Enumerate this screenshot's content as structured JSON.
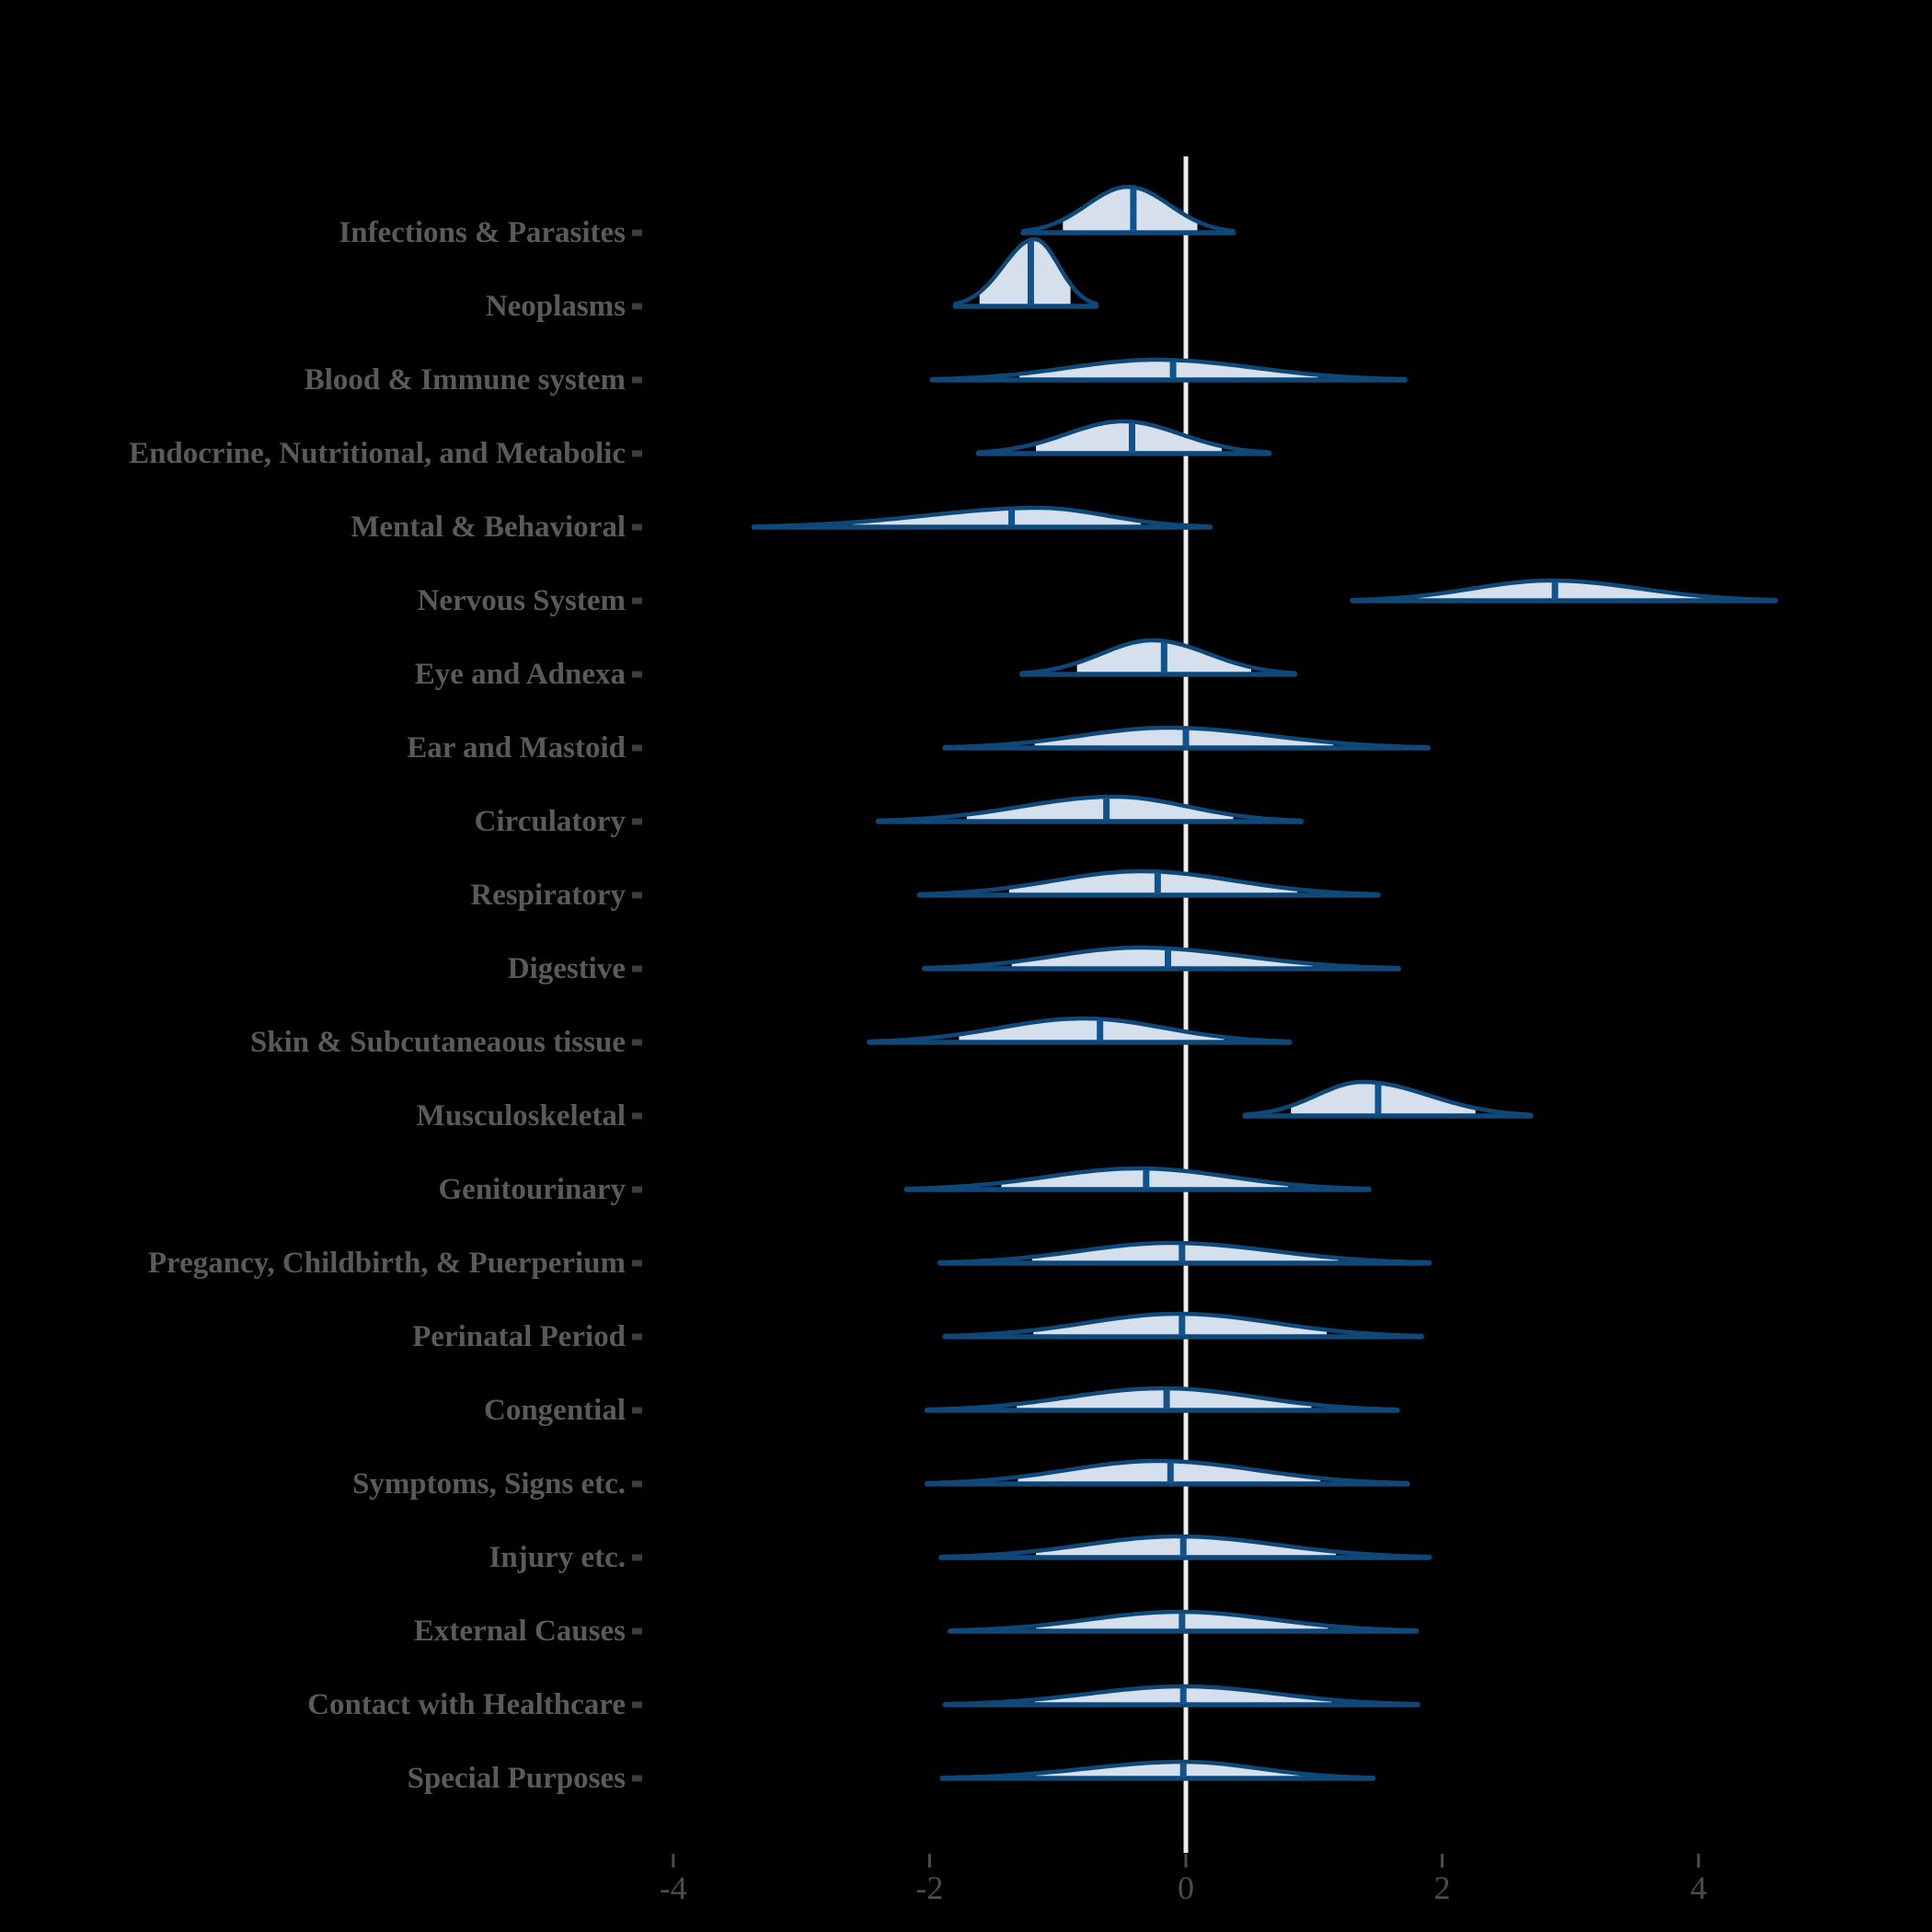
{
  "chart_data": {
    "type": "area",
    "subtype": "ridgeline-halfeye-densities",
    "title": "",
    "xlabel": "",
    "ylabel": "",
    "x_axis": {
      "ticks": [
        -4,
        -2,
        0,
        2,
        4
      ],
      "tick_labels": [
        "-4",
        "-2",
        "0",
        "2",
        "4"
      ],
      "range": [
        -4.95,
        5.05
      ],
      "zero_reference_line": true
    },
    "legend": null,
    "grid": false,
    "rows": [
      {
        "label": "Infections & Parasites",
        "median": -0.41,
        "mode": -0.45,
        "curve_min": -1.27,
        "curve_max": 0.37,
        "interval": [
          -0.96,
          0.09
        ],
        "peak_h": 50
      },
      {
        "label": "Neoplasms",
        "median": -1.21,
        "mode": -1.18,
        "curve_min": -1.8,
        "curve_max": -0.7,
        "interval": [
          -1.61,
          -0.9
        ],
        "peak_h": 73
      },
      {
        "label": "Blood & Immune system",
        "median": -0.1,
        "mode": -0.23,
        "curve_min": -1.98,
        "curve_max": 1.71,
        "interval": [
          -1.3,
          1.03
        ],
        "peak_h": 22
      },
      {
        "label": "Endocrine, Nutritional, and Metabolic",
        "median": -0.42,
        "mode": -0.49,
        "curve_min": -1.62,
        "curve_max": 0.65,
        "interval": [
          -1.17,
          0.28
        ],
        "peak_h": 35
      },
      {
        "label": "Mental & Behavioral",
        "median": -1.36,
        "mode": -1.15,
        "curve_min": -3.37,
        "curve_max": 0.19,
        "interval": [
          -2.6,
          -0.35
        ],
        "peak_h": 21
      },
      {
        "label": "Nervous System",
        "median": 2.88,
        "mode": 2.85,
        "curve_min": 1.3,
        "curve_max": 4.6,
        "interval": [
          1.81,
          4.11
        ],
        "peak_h": 22
      },
      {
        "label": "Eye and Adnexa",
        "median": -0.17,
        "mode": -0.26,
        "curve_min": -1.28,
        "curve_max": 0.85,
        "interval": [
          -0.85,
          0.51
        ],
        "peak_h": 37
      },
      {
        "label": "Ear and Mastoid",
        "median": 0.0,
        "mode": -0.14,
        "curve_min": -1.88,
        "curve_max": 1.89,
        "interval": [
          -1.18,
          1.15
        ],
        "peak_h": 22
      },
      {
        "label": "Circulatory",
        "median": -0.62,
        "mode": -0.56,
        "curve_min": -2.4,
        "curve_max": 0.9,
        "interval": [
          -1.71,
          0.37
        ],
        "peak_h": 27
      },
      {
        "label": "Respiratory",
        "median": -0.22,
        "mode": -0.35,
        "curve_min": -2.08,
        "curve_max": 1.5,
        "interval": [
          -1.38,
          0.87
        ],
        "peak_h": 26
      },
      {
        "label": "Digestive",
        "median": -0.14,
        "mode": -0.36,
        "curve_min": -2.04,
        "curve_max": 1.66,
        "interval": [
          -1.36,
          0.99
        ],
        "peak_h": 23
      },
      {
        "label": "Skin & Subcutaneaous tissue",
        "median": -0.67,
        "mode": -0.8,
        "curve_min": -2.47,
        "curve_max": 0.81,
        "interval": [
          -1.77,
          0.3
        ],
        "peak_h": 26
      },
      {
        "label": "Musculoskeletal",
        "median": 1.5,
        "mode": 1.38,
        "curve_min": 0.46,
        "curve_max": 2.69,
        "interval": [
          0.82,
          2.26
        ],
        "peak_h": 37
      },
      {
        "label": "Genitourinary",
        "median": -0.31,
        "mode": -0.37,
        "curve_min": -2.18,
        "curve_max": 1.43,
        "interval": [
          -1.44,
          0.8
        ],
        "peak_h": 23
      },
      {
        "label": "Pregancy, Childbirth, & Puerperium",
        "median": -0.03,
        "mode": -0.12,
        "curve_min": -1.92,
        "curve_max": 1.9,
        "interval": [
          -1.2,
          1.19
        ],
        "peak_h": 22
      },
      {
        "label": "Perinatal Period",
        "median": -0.03,
        "mode": -0.06,
        "curve_min": -1.88,
        "curve_max": 1.84,
        "interval": [
          -1.19,
          1.1
        ],
        "peak_h": 25
      },
      {
        "label": "Congential",
        "median": -0.15,
        "mode": -0.18,
        "curve_min": -2.02,
        "curve_max": 1.65,
        "interval": [
          -1.32,
          0.98
        ],
        "peak_h": 24
      },
      {
        "label": "Symptoms, Signs etc.",
        "median": -0.12,
        "mode": -0.22,
        "curve_min": -2.02,
        "curve_max": 1.73,
        "interval": [
          -1.31,
          1.05
        ],
        "peak_h": 25
      },
      {
        "label": "Injury etc.",
        "median": -0.02,
        "mode": -0.06,
        "curve_min": -1.91,
        "curve_max": 1.9,
        "interval": [
          -1.17,
          1.17
        ],
        "peak_h": 23
      },
      {
        "label": "External Causes",
        "median": -0.03,
        "mode": -0.05,
        "curve_min": -1.84,
        "curve_max": 1.8,
        "interval": [
          -1.17,
          1.11
        ],
        "peak_h": 21
      },
      {
        "label": "Contact with Healthcare",
        "median": -0.02,
        "mode": -0.02,
        "curve_min": -1.88,
        "curve_max": 1.81,
        "interval": [
          -1.18,
          1.14
        ],
        "peak_h": 20
      },
      {
        "label": "Special Purposes",
        "median": -0.02,
        "mode": -0.02,
        "curve_min": -1.9,
        "curve_max": 1.46,
        "interval": [
          -1.17,
          1.17
        ],
        "peak_h": 18
      }
    ]
  },
  "style": {
    "background": "#000000",
    "curve_stroke": "#0f4878",
    "baseline_stroke": "#0f4878",
    "median_stroke": "#11538c",
    "density_fill": "#d5e0ec",
    "zero_line": "#ededed",
    "label_color": "#5a5a5a",
    "axis_text_color": "#4c4c4c",
    "axis_tick_color": "#4c4c4c",
    "category_tick_color": "#3c3c3c"
  }
}
